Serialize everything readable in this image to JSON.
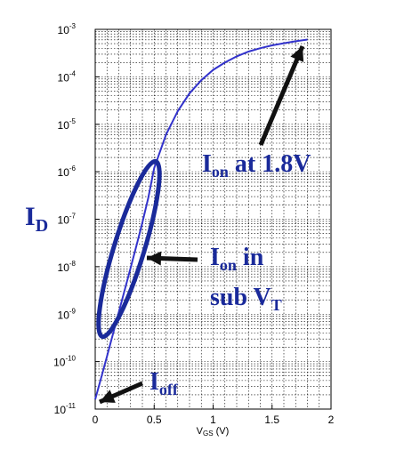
{
  "chart_data": {
    "type": "line",
    "title": "",
    "xlabel": "VGS (V)",
    "xlabel_main": "V",
    "xlabel_sub": "GS",
    "xlabel_unit": "(V)",
    "ylabel": "ID",
    "ylabel_main": "I",
    "ylabel_sub": "D",
    "xlim": [
      0,
      2
    ],
    "ylim_exponent": [
      -11,
      -3
    ],
    "yscale": "log",
    "grid": true,
    "x_ticks": [
      "0",
      "0.5",
      "1",
      "1.5",
      "2"
    ],
    "y_ticks": [
      {
        "base": "10",
        "exp": "-11"
      },
      {
        "base": "10",
        "exp": "-10"
      },
      {
        "base": "10",
        "exp": "-9"
      },
      {
        "base": "10",
        "exp": "-8"
      },
      {
        "base": "10",
        "exp": "-7"
      },
      {
        "base": "10",
        "exp": "-6"
      },
      {
        "base": "10",
        "exp": "-5"
      },
      {
        "base": "10",
        "exp": "-4"
      },
      {
        "base": "10",
        "exp": "-3"
      }
    ],
    "series": [
      {
        "color": "#3333cc",
        "x": [
          0,
          0.05,
          0.1,
          0.15,
          0.2,
          0.25,
          0.3,
          0.35,
          0.4,
          0.45,
          0.5,
          0.6,
          0.7,
          0.8,
          0.9,
          1.0,
          1.1,
          1.2,
          1.3,
          1.4,
          1.5,
          1.6,
          1.7,
          1.8
        ],
        "y": [
          1.6e-11,
          4.5e-11,
          1.3e-10,
          3.8e-10,
          1.1e-09,
          3.2e-09,
          9.5e-09,
          2.8e-08,
          8.5e-08,
          2.8e-07,
          1.2e-06,
          6e-06,
          1.9e-05,
          4.5e-05,
          8.5e-05,
          0.00014,
          0.0002,
          0.00027,
          0.00034,
          0.0004,
          0.00046,
          0.00051,
          0.00056,
          0.00061
        ]
      }
    ],
    "annotations": [
      {
        "id": "ion",
        "main": "I",
        "sub": "on",
        "rest": " at 1.8V",
        "color": "#1a2a9a"
      },
      {
        "id": "ion-sub",
        "main": "I",
        "sub": "on",
        "rest": " in",
        "line2_main": "sub V",
        "line2_sub": "T",
        "color": "#1a2a9a"
      },
      {
        "id": "ioff",
        "main": "I",
        "sub": "off",
        "color": "#1a2a9a"
      }
    ]
  }
}
